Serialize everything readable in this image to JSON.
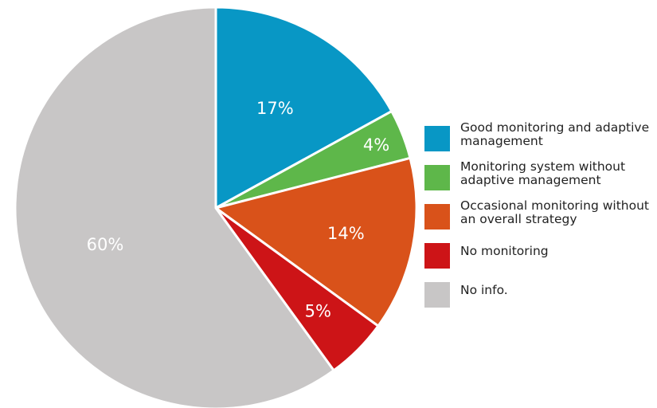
{
  "chart_data": {
    "type": "pie",
    "title": "",
    "slices": [
      {
        "label": "Good monitoring and adaptive management",
        "value": 17,
        "value_label": "17%",
        "color": "#0897c5"
      },
      {
        "label": "Monitoring system without adaptive management",
        "value": 4,
        "value_label": "4%",
        "color": "#5eb74a"
      },
      {
        "label": "Occasional monitoring without an overall strategy",
        "value": 14,
        "value_label": "14%",
        "color": "#d9521a"
      },
      {
        "label": "No monitoring",
        "value": 5,
        "value_label": "5%",
        "color": "#cd1417"
      },
      {
        "label": "No info.",
        "value": 60,
        "value_label": "60%",
        "color": "#c8c6c6"
      }
    ],
    "legend_position": "right"
  },
  "legend": {
    "items": [
      {
        "line1": "Good monitoring and adaptive",
        "line2": "management"
      },
      {
        "line1": "Monitoring system without",
        "line2": "adaptive management"
      },
      {
        "line1": "Occasional monitoring without",
        "line2": "an overall strategy"
      },
      {
        "line1": "No monitoring",
        "line2": ""
      },
      {
        "line1": "No info.",
        "line2": ""
      }
    ]
  }
}
